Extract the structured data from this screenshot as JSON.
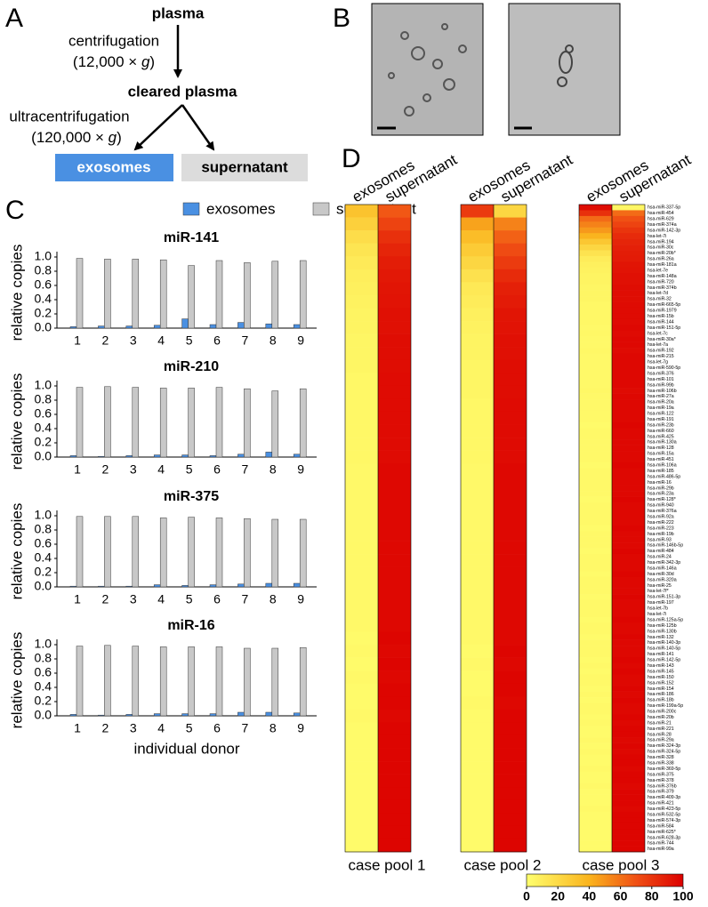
{
  "panel_letters": [
    "A",
    "B",
    "C",
    "D"
  ],
  "flow": {
    "start": "plasma",
    "step1": "centrifugation",
    "force1": "(12,000 × ",
    "g": "g",
    "close": ")",
    "middle": "cleared plasma",
    "step2": "ultracentrifugation",
    "force2": "(120,000 × ",
    "out1": "exosomes",
    "out2": "supernatant"
  },
  "chart_data": [
    {
      "type": "bar",
      "title": "miR-141",
      "ylabel": "relative copies",
      "categories": [
        "1",
        "2",
        "3",
        "4",
        "5",
        "6",
        "7",
        "8",
        "9"
      ],
      "ylim": [
        0,
        1
      ],
      "yticks": [
        {
          "value": 0,
          "label": "0.0"
        },
        0.2,
        0.4,
        0.6,
        0.8,
        {
          "value": 1,
          "label": "1.0"
        }
      ],
      "series": [
        {
          "name": "exosomes",
          "color": "#4a90e2",
          "values": [
            0.02,
            0.03,
            0.03,
            0.04,
            0.13,
            0.05,
            0.08,
            0.06,
            0.05
          ]
        },
        {
          "name": "supernatant",
          "color": "#c8c8c8",
          "values": [
            0.98,
            0.97,
            0.97,
            0.96,
            0.88,
            0.95,
            0.92,
            0.94,
            0.95
          ]
        }
      ]
    },
    {
      "type": "bar",
      "title": "miR-210",
      "ylabel": "relative copies",
      "categories": [
        "1",
        "2",
        "3",
        "4",
        "5",
        "6",
        "7",
        "8",
        "9"
      ],
      "ylim": [
        0,
        1
      ],
      "yticks": [
        {
          "value": 0,
          "label": "0.0"
        },
        0.2,
        0.4,
        0.6,
        0.8,
        {
          "value": 1,
          "label": "1.0"
        }
      ],
      "series": [
        {
          "color": "#4a90e2",
          "values": [
            0.02,
            0.01,
            0.02,
            0.03,
            0.03,
            0.02,
            0.04,
            0.07,
            0.04
          ]
        },
        {
          "color": "#c8c8c8",
          "values": [
            0.98,
            0.99,
            0.98,
            0.97,
            0.97,
            0.98,
            0.96,
            0.93,
            0.96
          ]
        }
      ]
    },
    {
      "type": "bar",
      "title": "miR-375",
      "ylabel": "relative copies",
      "categories": [
        "1",
        "2",
        "3",
        "4",
        "5",
        "6",
        "7",
        "8",
        "9"
      ],
      "ylim": [
        0,
        1
      ],
      "yticks": [
        {
          "value": 0,
          "label": "0.0"
        },
        0.2,
        0.4,
        0.6,
        0.8,
        {
          "value": 1,
          "label": "1.0"
        }
      ],
      "series": [
        {
          "color": "#4a90e2",
          "values": [
            0.01,
            0.01,
            0.01,
            0.03,
            0.02,
            0.03,
            0.04,
            0.05,
            0.05
          ]
        },
        {
          "color": "#c8c8c8",
          "values": [
            0.99,
            0.99,
            0.99,
            0.97,
            0.98,
            0.97,
            0.96,
            0.95,
            0.95
          ]
        }
      ]
    },
    {
      "type": "bar",
      "title": "miR-16",
      "ylabel": "relative copies",
      "xlabel": "individual donor",
      "categories": [
        "1",
        "2",
        "3",
        "4",
        "5",
        "6",
        "7",
        "8",
        "9"
      ],
      "ylim": [
        0,
        1
      ],
      "yticks": [
        {
          "value": 0,
          "label": "0.0"
        },
        0.2,
        0.4,
        0.6,
        0.8,
        {
          "value": 1,
          "label": "1.0"
        }
      ],
      "series": [
        {
          "color": "#4a90e2",
          "values": [
            0.02,
            0.01,
            0.02,
            0.03,
            0.03,
            0.03,
            0.05,
            0.05,
            0.04
          ]
        },
        {
          "color": "#c8c8c8",
          "values": [
            0.98,
            0.99,
            0.98,
            0.97,
            0.97,
            0.97,
            0.95,
            0.95,
            0.96
          ]
        }
      ]
    },
    {
      "type": "heatmap",
      "title": "case pool 1",
      "series": [
        {
          "name": "exosomes",
          "values": [
            32,
            25,
            18,
            14,
            11,
            9,
            8,
            7,
            6,
            6,
            5,
            5,
            5,
            4,
            4,
            4,
            4,
            4,
            4,
            4,
            3,
            3,
            3,
            3,
            3,
            3,
            3,
            3,
            3,
            3,
            3,
            3,
            3,
            2,
            3,
            2,
            3,
            2,
            2,
            3,
            2,
            2,
            2,
            2,
            2,
            2,
            2,
            2,
            2,
            2
          ]
        },
        {
          "name": "supernatant",
          "values": [
            68,
            75,
            82,
            86,
            89,
            91,
            92,
            93,
            94,
            94,
            95,
            95,
            95,
            96,
            96,
            96,
            96,
            96,
            96,
            96,
            97,
            97,
            97,
            97,
            97,
            97,
            97,
            97,
            97,
            97,
            97,
            97,
            97,
            98,
            97,
            98,
            97,
            98,
            98,
            97,
            98,
            98,
            98,
            98,
            98,
            98,
            98,
            98,
            98,
            98
          ]
        }
      ]
    },
    {
      "type": "heatmap",
      "title": "case pool 2",
      "series": [
        {
          "name": "exosomes",
          "values": [
            78,
            45,
            35,
            28,
            22,
            16,
            12,
            10,
            8,
            7,
            6,
            6,
            5,
            5,
            5,
            4,
            4,
            4,
            4,
            4,
            3,
            3,
            3,
            3,
            3,
            3,
            3,
            3,
            3,
            3,
            3,
            3,
            3,
            3,
            2,
            3,
            2,
            2,
            3,
            2,
            2,
            2,
            2,
            2,
            2,
            2,
            2,
            2,
            2,
            2
          ]
        },
        {
          "name": "supernatant",
          "values": [
            22,
            55,
            65,
            72,
            78,
            84,
            88,
            90,
            92,
            93,
            94,
            94,
            95,
            95,
            95,
            96,
            96,
            96,
            96,
            96,
            97,
            97,
            97,
            97,
            97,
            97,
            97,
            97,
            97,
            97,
            97,
            97,
            97,
            97,
            98,
            97,
            98,
            98,
            97,
            98,
            98,
            98,
            98,
            98,
            98,
            98,
            98,
            98,
            98,
            98
          ]
        }
      ]
    },
    {
      "type": "heatmap",
      "title": "case pool 3",
      "rows": [
        "hsa-miR-337-5p",
        "hsa-miR-454",
        "hsa-miR-629",
        "hsa-miR-374a",
        "hsa-miR-142-3p",
        "hsa-let-7i",
        "hsa-miR-194",
        "hsa-miR-30c",
        "hsa-miR-20b*",
        "hsa-miR-26a",
        "hsa-miR-181a",
        "hsa-let-7e",
        "hsa-miR-148a",
        "hsa-miR-720",
        "hsa-miR-374b",
        "hsa-let-7d",
        "hsa-miR-32",
        "hsa-miR-665-5p",
        "hsa-miR-1979",
        "hsa-miR-15b",
        "hsa-miR-144",
        "hsa-miR-151-5p",
        "hsa-let-7c",
        "hsa-miR-30a*",
        "hsa-let-7a",
        "hsa-miR-192",
        "hsa-miR-215",
        "hsa-let-7g",
        "hsa-miR-590-5p",
        "hsa-miR-376",
        "hsa-miR-101",
        "hsa-miR-99b",
        "hsa-miR-106b",
        "hsa-miR-27a",
        "hsa-miR-20a",
        "hsa-miR-19a",
        "hsa-miR-122",
        "hsa-miR-191",
        "hsa-miR-23b",
        "hsa-miR-660",
        "hsa-miR-425",
        "hsa-miR-130a",
        "hsa-miR-128",
        "hsa-miR-15a",
        "hsa-miR-451",
        "hsa-miR-106a",
        "hsa-miR-185",
        "hsa-miR-486-5p",
        "hsa-miR-16",
        "hsa-miR-29b",
        "hsa-miR-23a",
        "hsa-miR-128*",
        "hsa-miR-940",
        "hsa-miR-376a",
        "hsa-miR-92a",
        "hsa-miR-222",
        "hsa-miR-223",
        "hsa-miR-19b",
        "hsa-miR-93",
        "hsa-miR-146b-5p",
        "hsa-miR-484",
        "hsa-miR-24",
        "hsa-miR-342-3p",
        "hsa-miR-146a",
        "hsa-miR-30d",
        "hsa-miR-320a",
        "hsa-miR-25",
        "hsa-let-7f*",
        "hsa-miR-151-3p",
        "hsa-miR-197",
        "hsa-let-7b",
        "hsa-let-7i",
        "hsa-miR-125a-5p",
        "hsa-miR-125b",
        "hsa-miR-130b",
        "hsa-miR-132",
        "hsa-miR-140-3p",
        "hsa-miR-140-5p",
        "hsa-miR-141",
        "hsa-miR-142-5p",
        "hsa-miR-143",
        "hsa-miR-145",
        "hsa-miR-150",
        "hsa-miR-152",
        "hsa-miR-154",
        "hsa-miR-186",
        "hsa-miR-18b",
        "hsa-miR-199a-5p",
        "hsa-miR-200c",
        "hsa-miR-20b",
        "hsa-miR-21",
        "hsa-miR-221",
        "hsa-miR-28",
        "hsa-miR-29a",
        "hsa-miR-324-3p",
        "hsa-miR-324-5p",
        "hsa-miR-328",
        "hsa-miR-338",
        "hsa-miR-369-5p",
        "hsa-miR-375",
        "hsa-miR-378",
        "hsa-miR-376b",
        "hsa-miR-379",
        "hsa-miR-409-3p",
        "hsa-miR-421",
        "hsa-miR-423-5p",
        "hsa-miR-532-5p",
        "hsa-miR-574-3p",
        "hsa-miR-584",
        "hsa-miR-625*",
        "hsa-miR-628-3p",
        "hsa-miR-744",
        "hsa-miR-99a"
      ],
      "series": [
        {
          "name": "exosomes",
          "values": [
            95,
            82,
            62,
            55,
            48,
            40,
            30,
            22,
            15,
            10,
            8,
            7,
            6,
            6,
            5,
            5,
            5,
            4,
            4,
            4,
            4,
            3,
            4,
            3,
            3,
            4,
            3,
            3,
            3,
            3,
            3,
            3,
            4,
            3,
            3,
            3,
            3,
            3,
            2,
            3,
            3,
            3,
            3,
            3,
            3,
            2,
            3,
            3,
            3,
            3,
            3,
            2,
            3,
            3,
            3,
            3,
            2,
            3,
            3,
            3,
            2,
            3,
            3,
            3,
            2,
            3,
            3,
            3,
            2,
            3,
            3,
            3,
            2,
            3,
            3,
            2,
            3,
            3,
            3,
            2,
            3,
            2,
            3,
            3,
            2,
            3,
            2,
            3,
            3,
            2,
            3,
            2,
            2,
            3,
            2,
            3,
            2,
            2,
            3,
            2,
            2,
            3,
            2,
            2,
            2,
            3,
            2,
            2,
            2,
            2,
            2,
            2,
            2
          ]
        },
        {
          "name": "supernatant",
          "values": [
            5,
            62,
            70,
            75,
            80,
            84,
            86,
            88,
            89,
            90,
            92,
            93,
            94,
            94,
            95,
            95,
            95,
            96,
            96,
            96,
            96,
            97,
            96,
            97,
            97,
            96,
            97,
            97,
            97,
            97,
            97,
            97,
            96,
            97,
            97,
            97,
            97,
            97,
            98,
            97,
            97,
            97,
            97,
            97,
            97,
            98,
            97,
            97,
            97,
            97,
            97,
            98,
            97,
            97,
            97,
            97,
            98,
            97,
            97,
            97,
            98,
            97,
            97,
            97,
            98,
            97,
            97,
            97,
            98,
            97,
            97,
            97,
            98,
            97,
            97,
            98,
            97,
            97,
            97,
            98,
            97,
            98,
            97,
            97,
            98,
            97,
            98,
            97,
            97,
            98,
            97,
            98,
            98,
            97,
            98,
            97,
            98,
            98,
            97,
            98,
            98,
            97,
            98,
            98,
            98,
            97,
            98,
            98,
            98,
            98,
            98,
            98,
            98
          ]
        }
      ],
      "clim": [
        0,
        100
      ],
      "cticks": [
        0,
        20,
        40,
        60,
        80,
        100
      ]
    }
  ]
}
